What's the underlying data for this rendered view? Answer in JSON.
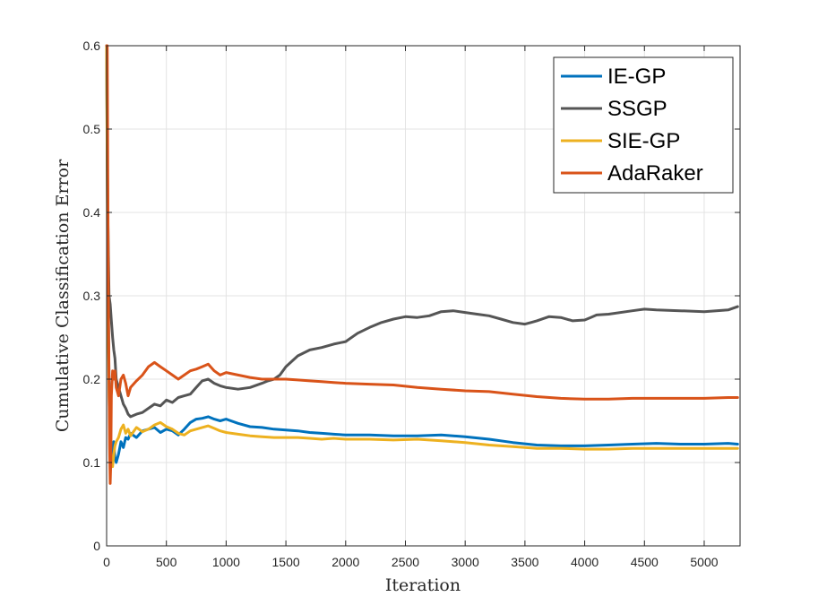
{
  "chart_data": {
    "type": "line",
    "title": "",
    "xlabel": "Iteration",
    "ylabel": "Cumulative Classification Error",
    "xlim": [
      0,
      5300
    ],
    "ylim": [
      0,
      0.6
    ],
    "xticks": [
      0,
      500,
      1000,
      1500,
      2000,
      2500,
      3000,
      3500,
      4000,
      4500,
      5000
    ],
    "xtick_labels": [
      "0",
      "500",
      "1000",
      "1500",
      "2000",
      "2500",
      "3000",
      "3500",
      "4000",
      "4500",
      "5000"
    ],
    "yticks": [
      0,
      0.1,
      0.2,
      0.3,
      0.4,
      0.5,
      0.6
    ],
    "ytick_labels": [
      "0",
      "0.1",
      "0.2",
      "0.3",
      "0.4",
      "0.5",
      "0.6"
    ],
    "grid": true,
    "legend_position": "top-right",
    "series": [
      {
        "name": "IE-GP",
        "color": "#0072BD",
        "x": [
          0,
          10,
          20,
          30,
          40,
          50,
          60,
          70,
          80,
          100,
          120,
          140,
          160,
          180,
          200,
          250,
          300,
          350,
          400,
          450,
          500,
          550,
          600,
          650,
          700,
          750,
          800,
          850,
          900,
          950,
          1000,
          1100,
          1200,
          1300,
          1400,
          1500,
          1600,
          1700,
          1800,
          1900,
          2000,
          2200,
          2400,
          2600,
          2800,
          3000,
          3200,
          3400,
          3600,
          3800,
          4000,
          4200,
          4400,
          4600,
          4800,
          5000,
          5200,
          5280
        ],
        "y": [
          0.6,
          0.35,
          0.2,
          0.14,
          0.11,
          0.1,
          0.125,
          0.105,
          0.1,
          0.11,
          0.125,
          0.118,
          0.13,
          0.128,
          0.135,
          0.13,
          0.138,
          0.14,
          0.142,
          0.136,
          0.14,
          0.138,
          0.133,
          0.14,
          0.148,
          0.152,
          0.153,
          0.155,
          0.152,
          0.15,
          0.152,
          0.147,
          0.143,
          0.142,
          0.14,
          0.139,
          0.138,
          0.136,
          0.135,
          0.134,
          0.133,
          0.133,
          0.132,
          0.132,
          0.133,
          0.131,
          0.128,
          0.124,
          0.121,
          0.12,
          0.12,
          0.121,
          0.122,
          0.123,
          0.122,
          0.122,
          0.123,
          0.122
        ]
      },
      {
        "name": "SSGP",
        "color": "#555555",
        "x": [
          0,
          10,
          20,
          30,
          40,
          50,
          60,
          70,
          80,
          100,
          120,
          140,
          160,
          180,
          200,
          250,
          300,
          350,
          400,
          450,
          500,
          550,
          600,
          650,
          700,
          750,
          800,
          850,
          900,
          950,
          1000,
          1100,
          1200,
          1300,
          1350,
          1400,
          1450,
          1500,
          1600,
          1700,
          1800,
          1900,
          2000,
          2100,
          2200,
          2300,
          2400,
          2500,
          2600,
          2700,
          2800,
          2900,
          3000,
          3100,
          3200,
          3300,
          3400,
          3500,
          3550,
          3600,
          3700,
          3800,
          3900,
          4000,
          4050,
          4100,
          4200,
          4400,
          4500,
          4600,
          4800,
          5000,
          5200,
          5280
        ],
        "y": [
          0.6,
          0.4,
          0.3,
          0.29,
          0.27,
          0.25,
          0.235,
          0.225,
          0.2,
          0.19,
          0.18,
          0.17,
          0.165,
          0.158,
          0.155,
          0.158,
          0.16,
          0.165,
          0.17,
          0.168,
          0.175,
          0.172,
          0.178,
          0.18,
          0.182,
          0.19,
          0.198,
          0.2,
          0.195,
          0.192,
          0.19,
          0.188,
          0.19,
          0.195,
          0.198,
          0.2,
          0.205,
          0.215,
          0.228,
          0.235,
          0.238,
          0.242,
          0.245,
          0.255,
          0.262,
          0.268,
          0.272,
          0.275,
          0.274,
          0.276,
          0.281,
          0.282,
          0.28,
          0.278,
          0.276,
          0.272,
          0.268,
          0.266,
          0.268,
          0.27,
          0.275,
          0.274,
          0.27,
          0.271,
          0.274,
          0.277,
          0.278,
          0.282,
          0.284,
          0.283,
          0.282,
          0.281,
          0.283,
          0.287
        ]
      },
      {
        "name": "SIE-GP",
        "color": "#EDB120",
        "x": [
          0,
          10,
          20,
          30,
          40,
          50,
          60,
          70,
          80,
          100,
          120,
          140,
          160,
          180,
          200,
          250,
          300,
          350,
          400,
          450,
          500,
          550,
          600,
          650,
          700,
          750,
          800,
          850,
          900,
          950,
          1000,
          1100,
          1200,
          1300,
          1400,
          1500,
          1600,
          1700,
          1800,
          1900,
          2000,
          2200,
          2400,
          2600,
          2800,
          3000,
          3200,
          3400,
          3600,
          3800,
          4000,
          4200,
          4400,
          4600,
          4800,
          5000,
          5200,
          5280
        ],
        "y": [
          0.6,
          0.3,
          0.18,
          0.12,
          0.1,
          0.095,
          0.11,
          0.12,
          0.125,
          0.13,
          0.14,
          0.145,
          0.135,
          0.14,
          0.132,
          0.142,
          0.137,
          0.14,
          0.145,
          0.148,
          0.143,
          0.14,
          0.135,
          0.133,
          0.138,
          0.14,
          0.142,
          0.144,
          0.141,
          0.138,
          0.136,
          0.134,
          0.132,
          0.131,
          0.13,
          0.13,
          0.13,
          0.129,
          0.128,
          0.129,
          0.128,
          0.128,
          0.127,
          0.128,
          0.126,
          0.124,
          0.121,
          0.119,
          0.117,
          0.117,
          0.116,
          0.116,
          0.117,
          0.117,
          0.117,
          0.117,
          0.117,
          0.117
        ]
      },
      {
        "name": "AdaRaker",
        "color": "#D95319",
        "x": [
          0,
          5,
          10,
          15,
          20,
          25,
          30,
          35,
          40,
          50,
          60,
          70,
          80,
          100,
          120,
          140,
          160,
          180,
          200,
          250,
          300,
          350,
          400,
          450,
          500,
          550,
          600,
          650,
          700,
          750,
          800,
          850,
          900,
          950,
          1000,
          1100,
          1200,
          1300,
          1400,
          1500,
          1600,
          1700,
          1800,
          1900,
          2000,
          2200,
          2400,
          2600,
          2800,
          3000,
          3200,
          3400,
          3600,
          3800,
          4000,
          4200,
          4400,
          4600,
          4800,
          5000,
          5200,
          5280
        ],
        "y": [
          0.6,
          0.6,
          0.45,
          0.3,
          0.2,
          0.12,
          0.075,
          0.1,
          0.18,
          0.21,
          0.2,
          0.21,
          0.19,
          0.18,
          0.2,
          0.205,
          0.195,
          0.18,
          0.19,
          0.198,
          0.205,
          0.215,
          0.22,
          0.215,
          0.21,
          0.205,
          0.2,
          0.205,
          0.21,
          0.212,
          0.215,
          0.218,
          0.21,
          0.205,
          0.208,
          0.205,
          0.202,
          0.2,
          0.2,
          0.2,
          0.199,
          0.198,
          0.197,
          0.196,
          0.195,
          0.194,
          0.193,
          0.19,
          0.188,
          0.186,
          0.185,
          0.182,
          0.179,
          0.177,
          0.176,
          0.176,
          0.177,
          0.177,
          0.177,
          0.177,
          0.178,
          0.178
        ]
      }
    ]
  }
}
